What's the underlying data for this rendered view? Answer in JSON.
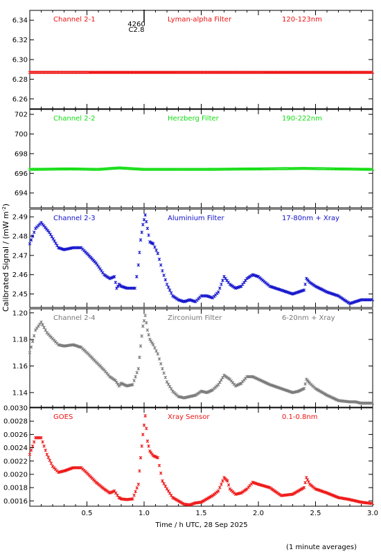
{
  "figure": {
    "ylabel": "Calibrated Signal / (mW m",
    "ylabel_sup": "-2",
    "ylabel_end": ")",
    "xlabel": "Time / h UTC, 28 Sep 2025",
    "footnote": "(1 minute averages)",
    "annotation_top": "4260",
    "annotation_bottom": "C2.8"
  },
  "chart_data": [
    {
      "type": "scatter",
      "title_left": "Channel 2-1",
      "title_mid": "Lyman-alpha Filter",
      "title_right": "120-123nm",
      "color": "#ee1111",
      "ylim": [
        6.25,
        6.35
      ],
      "yticks": [
        6.26,
        6.28,
        6.3,
        6.32,
        6.34
      ],
      "ytick_labels": [
        "6.26",
        "6.28",
        "6.30",
        "6.32",
        "6.34"
      ],
      "xlim": [
        0,
        3.0
      ],
      "x": [
        0,
        3.0
      ],
      "y": [
        6.287,
        6.287
      ]
    },
    {
      "type": "scatter",
      "title_left": "Channel 2-2",
      "title_mid": "Herzberg Filter",
      "title_right": "190-222nm",
      "color": "#11dd11",
      "ylim": [
        692.5,
        702.5
      ],
      "yticks": [
        694,
        696,
        698,
        700,
        702
      ],
      "ytick_labels": [
        "694",
        "696",
        "698",
        "700",
        "702"
      ],
      "xlim": [
        0,
        3.0
      ],
      "x": [
        0,
        0.35,
        0.6,
        0.78,
        1.0,
        1.5,
        2.0,
        2.4,
        3.0
      ],
      "y": [
        696.4,
        696.45,
        696.4,
        696.55,
        696.4,
        696.4,
        696.45,
        696.5,
        696.4
      ]
    },
    {
      "type": "scatter",
      "title_left": "Channel 2-3",
      "title_mid": "Aluminium Filter",
      "title_right": "17-80nm + Xray",
      "color": "#1111cc",
      "ylim": [
        2.443,
        2.494
      ],
      "yticks": [
        2.45,
        2.46,
        2.47,
        2.48,
        2.49
      ],
      "ytick_labels": [
        "2.45",
        "2.46",
        "2.47",
        "2.48",
        "2.49"
      ],
      "xlim": [
        0,
        3.0
      ],
      "x": [
        0,
        0.05,
        0.1,
        0.17,
        0.25,
        0.3,
        0.38,
        0.45,
        0.5,
        0.58,
        0.65,
        0.7,
        0.74,
        0.76,
        0.78,
        0.8,
        0.85,
        0.92,
        0.95,
        0.97,
        0.99,
        1.01,
        1.03,
        1.05,
        1.08,
        1.12,
        1.16,
        1.2,
        1.25,
        1.3,
        1.35,
        1.4,
        1.45,
        1.5,
        1.55,
        1.6,
        1.65,
        1.7,
        1.75,
        1.8,
        1.85,
        1.9,
        1.95,
        2.0,
        2.1,
        2.2,
        2.3,
        2.35,
        2.4,
        2.42,
        2.45,
        2.5,
        2.6,
        2.7,
        2.8,
        2.85,
        2.9,
        3.0
      ],
      "y": [
        2.476,
        2.484,
        2.487,
        2.482,
        2.474,
        2.473,
        2.474,
        2.474,
        2.471,
        2.466,
        2.46,
        2.458,
        2.459,
        2.453,
        2.455,
        2.454,
        2.453,
        2.453,
        2.465,
        2.478,
        2.486,
        2.491,
        2.484,
        2.477,
        2.476,
        2.471,
        2.462,
        2.455,
        2.449,
        2.447,
        2.446,
        2.447,
        2.446,
        2.449,
        2.449,
        2.448,
        2.451,
        2.459,
        2.455,
        2.453,
        2.454,
        2.458,
        2.46,
        2.459,
        2.454,
        2.452,
        2.45,
        2.451,
        2.452,
        2.458,
        2.456,
        2.454,
        2.451,
        2.449,
        2.445,
        2.446,
        2.447,
        2.447
      ]
    },
    {
      "type": "scatter",
      "title_left": "Channel 2-4",
      "title_mid": "Zirconium Filter",
      "title_right": "6-20nm + Xray",
      "color": "#777777",
      "ylim": [
        1.129,
        1.203
      ],
      "yticks": [
        1.14,
        1.16,
        1.18,
        1.2
      ],
      "ytick_labels": [
        "1.14",
        "1.16",
        "1.18",
        "1.20"
      ],
      "xlim": [
        0,
        3.0
      ],
      "x": [
        0,
        0.05,
        0.1,
        0.15,
        0.25,
        0.3,
        0.38,
        0.45,
        0.5,
        0.58,
        0.65,
        0.7,
        0.75,
        0.78,
        0.8,
        0.85,
        0.9,
        0.95,
        0.97,
        0.99,
        1.01,
        1.03,
        1.05,
        1.08,
        1.12,
        1.16,
        1.2,
        1.25,
        1.3,
        1.35,
        1.4,
        1.45,
        1.5,
        1.55,
        1.6,
        1.65,
        1.7,
        1.75,
        1.8,
        1.85,
        1.9,
        1.95,
        2.0,
        2.1,
        2.2,
        2.3,
        2.35,
        2.4,
        2.42,
        2.45,
        2.5,
        2.6,
        2.7,
        2.8,
        2.85,
        2.9,
        3.0
      ],
      "y": [
        1.17,
        1.187,
        1.193,
        1.185,
        1.176,
        1.175,
        1.176,
        1.174,
        1.17,
        1.163,
        1.157,
        1.152,
        1.149,
        1.145,
        1.147,
        1.145,
        1.146,
        1.158,
        1.175,
        1.19,
        1.198,
        1.187,
        1.18,
        1.176,
        1.169,
        1.158,
        1.148,
        1.141,
        1.137,
        1.136,
        1.137,
        1.138,
        1.141,
        1.14,
        1.142,
        1.146,
        1.153,
        1.15,
        1.145,
        1.147,
        1.152,
        1.152,
        1.15,
        1.146,
        1.143,
        1.14,
        1.141,
        1.143,
        1.15,
        1.147,
        1.143,
        1.138,
        1.134,
        1.133,
        1.133,
        1.132,
        1.132
      ]
    },
    {
      "type": "scatter",
      "title_left": "GOES",
      "title_mid": "Xray Sensor",
      "title_right": "0.1-0.8nm",
      "color": "#ee1111",
      "ylim": [
        0.00152,
        0.003
      ],
      "yticks": [
        0.0016,
        0.0018,
        0.002,
        0.0022,
        0.0024,
        0.0026,
        0.0028,
        0.003
      ],
      "ytick_labels": [
        "0.0016",
        "0.0018",
        "0.0020",
        "0.0022",
        "0.0024",
        "0.0026",
        "0.0028",
        "0.0030"
      ],
      "xlim": [
        0,
        3.0
      ],
      "xticks": [
        0.5,
        1.0,
        1.5,
        2.0,
        2.5,
        3.0
      ],
      "xtick_labels": [
        "0.5",
        "1.0",
        "1.5",
        "2.0",
        "2.5",
        "3.0"
      ],
      "x": [
        0,
        0.05,
        0.1,
        0.15,
        0.2,
        0.25,
        0.3,
        0.38,
        0.45,
        0.5,
        0.58,
        0.65,
        0.7,
        0.74,
        0.78,
        0.8,
        0.85,
        0.9,
        0.95,
        0.97,
        0.99,
        1.01,
        1.03,
        1.05,
        1.08,
        1.12,
        1.16,
        1.2,
        1.25,
        1.3,
        1.35,
        1.4,
        1.45,
        1.5,
        1.55,
        1.6,
        1.65,
        1.7,
        1.73,
        1.75,
        1.8,
        1.85,
        1.9,
        1.95,
        2.0,
        2.1,
        2.2,
        2.3,
        2.35,
        2.4,
        2.42,
        2.45,
        2.5,
        2.6,
        2.7,
        2.8,
        2.9,
        3.0
      ],
      "y": [
        0.0023,
        0.00255,
        0.00255,
        0.0023,
        0.00212,
        0.00203,
        0.00205,
        0.0021,
        0.0021,
        0.00202,
        0.00188,
        0.00178,
        0.00172,
        0.00175,
        0.00165,
        0.00163,
        0.00162,
        0.00163,
        0.00185,
        0.00225,
        0.0026,
        0.00288,
        0.0025,
        0.00235,
        0.00228,
        0.00225,
        0.0019,
        0.00178,
        0.00165,
        0.0016,
        0.00155,
        0.00154,
        0.00157,
        0.00158,
        0.00163,
        0.00168,
        0.00175,
        0.00195,
        0.0019,
        0.00178,
        0.0017,
        0.00172,
        0.00178,
        0.00188,
        0.00185,
        0.0018,
        0.00168,
        0.0017,
        0.00175,
        0.0018,
        0.00195,
        0.00185,
        0.00178,
        0.00172,
        0.00165,
        0.00162,
        0.00158,
        0.00156
      ]
    }
  ]
}
